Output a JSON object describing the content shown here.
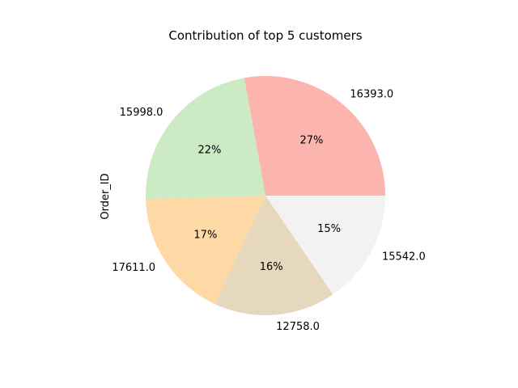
{
  "chart_data": {
    "type": "pie",
    "title": "Contribution of top 5 customers",
    "ylabel": "Order_ID",
    "labels": [
      "16393.0",
      "15998.0",
      "17611.0",
      "12758.0",
      "15542.0"
    ],
    "percent_labels": [
      "27%",
      "22%",
      "17%",
      "16%",
      "15%"
    ],
    "values": [
      27,
      22,
      17,
      16,
      15
    ],
    "colors": [
      "#fbb4ae",
      "#ccebc5",
      "#fed9a6",
      "#e5d8bd",
      "#f2f2f2"
    ],
    "start_angle_deg": 0,
    "direction": "counterclockwise",
    "legend": "none"
  }
}
